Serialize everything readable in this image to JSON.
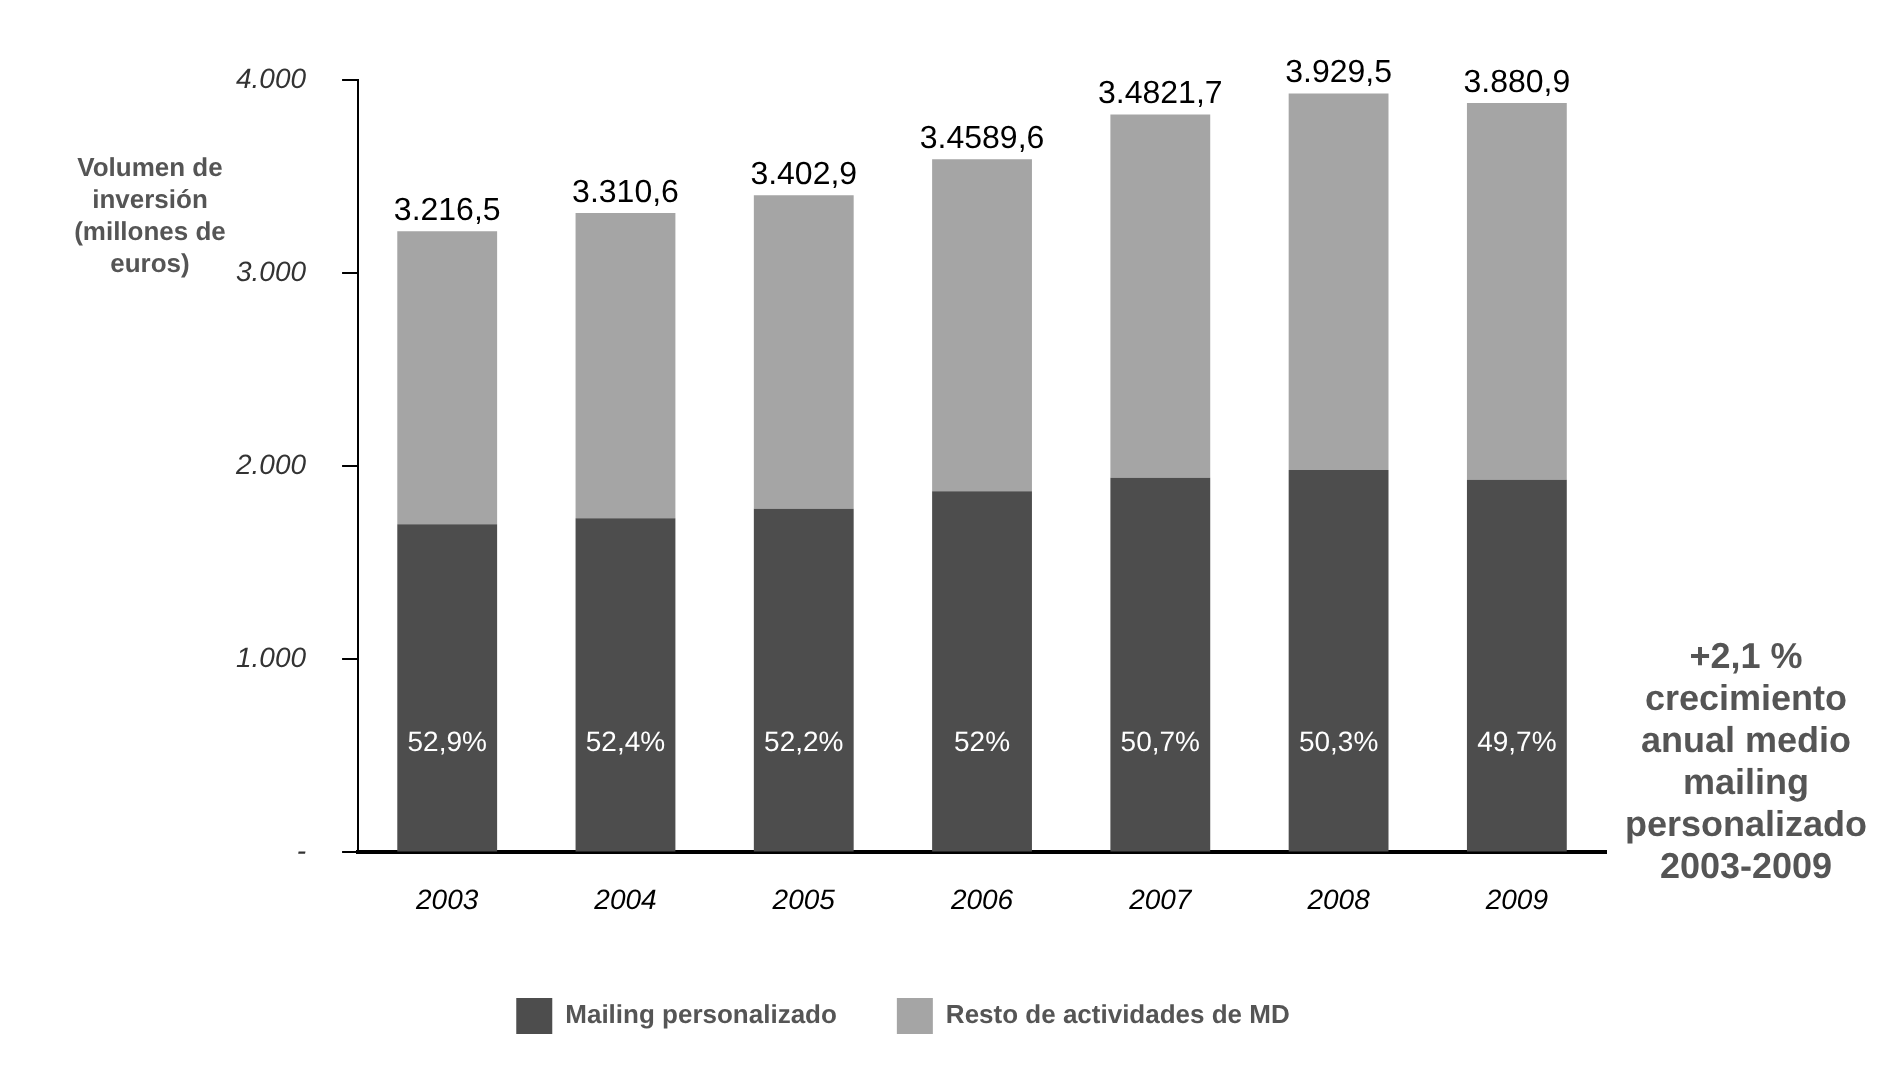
{
  "chart_data": {
    "type": "bar",
    "stacked": true,
    "ylabel": "Volumen de inversión (millones de euros)",
    "categories": [
      "2003",
      "2004",
      "2005",
      "2006",
      "2007",
      "2008",
      "2009"
    ],
    "series": [
      {
        "name": "Mailing personalizado",
        "color": "#4d4d4d",
        "values": [
          1700,
          1730,
          1780,
          1870,
          1940,
          1980,
          1930
        ]
      },
      {
        "name": "Resto de actividades de MD",
        "color": "#a5a5a5",
        "values": [
          1516.5,
          1580.6,
          1622.9,
          1719.6,
          1881.7,
          1949.5,
          1950.9
        ]
      }
    ],
    "totals": [
      "3.216,5",
      "3.310,6",
      "3.402,9",
      "3.4589,6",
      "3.4821,7",
      "3.929,5",
      "3.880,9"
    ],
    "ylim": [
      0,
      4000
    ],
    "yticks": [
      {
        "value": 0,
        "label": "-"
      },
      {
        "value": 1000,
        "label": "1.000"
      },
      {
        "value": 2000,
        "label": "2.000"
      },
      {
        "value": 3000,
        "label": "3.000"
      },
      {
        "value": 4000,
        "label": "4.000"
      }
    ],
    "grid": false,
    "legend": "bottom",
    "annotations": [
      "+2,1 % crecimiento anual medio mailing personalizado 2003-2009",
      "52,9%",
      "52,4%",
      "52,2%",
      "52%",
      "50,7%",
      "50,3%",
      "49,7%"
    ]
  }
}
